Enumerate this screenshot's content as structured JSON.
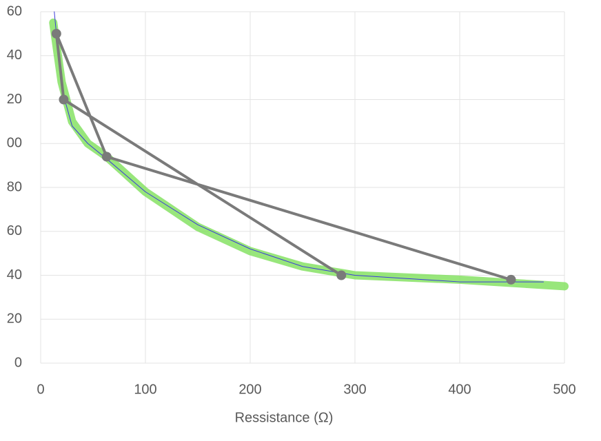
{
  "chart_data": {
    "type": "scatter-line",
    "x_label": "Ressistance (Ω)",
    "xlim": [
      0,
      500
    ],
    "xticks": [
      0,
      100,
      200,
      300,
      400,
      500
    ],
    "ylim": [
      0,
      160
    ],
    "yticks": [
      0,
      20,
      40,
      {
        "value": 60,
        "label": "60"
      },
      80,
      {
        "value": 100,
        "label": "00"
      },
      {
        "value": 120,
        "label": "20"
      },
      {
        "value": 140,
        "label": "40"
      },
      {
        "value": 160,
        "label": "60"
      }
    ],
    "grid": true,
    "series": [
      {
        "color": "#7ee05a",
        "width": 12,
        "x": [
          12,
          20,
          30,
          45,
          63,
          100,
          150,
          200,
          250,
          300,
          400,
          500
        ],
        "values": [
          155,
          128,
          110,
          100,
          94,
          78,
          62,
          51,
          44,
          40,
          38,
          35
        ]
      },
      {
        "color": "#3a3ad8",
        "width": 1,
        "x": [
          13,
          20,
          30,
          45,
          63,
          100,
          150,
          200,
          250,
          300,
          400,
          480
        ],
        "values": [
          160,
          125,
          108,
          100,
          93,
          78,
          63,
          52,
          44,
          40,
          37,
          37
        ]
      },
      {
        "color": "#7a7a7a",
        "width": 4,
        "markers": true,
        "x": [
          449,
          63,
          15,
          22,
          287
        ],
        "values": [
          38,
          94,
          150,
          120,
          40
        ]
      }
    ]
  }
}
